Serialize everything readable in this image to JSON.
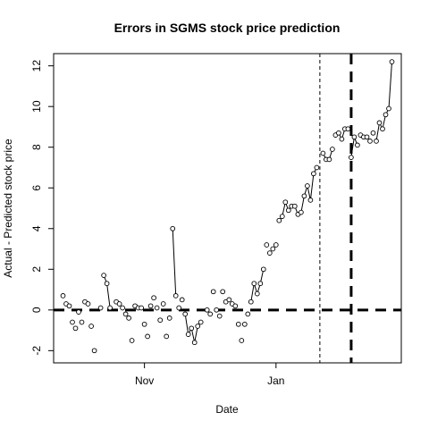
{
  "chart_data": {
    "type": "line",
    "title": "Errors in SGMS stock price prediction",
    "xlabel": "Date",
    "ylabel": "Actual - Predicted stock price",
    "x_ticks": [
      {
        "label": "Nov",
        "index": 26
      },
      {
        "label": "Jan",
        "index": 68
      }
    ],
    "y_ticks": [
      -2,
      0,
      2,
      4,
      6,
      8,
      10,
      12
    ],
    "xlim": [
      -3,
      108
    ],
    "ylim": [
      -2.6,
      12.6
    ],
    "grid": false,
    "legend": "none",
    "reference_lines": [
      {
        "orientation": "horizontal",
        "value": 0,
        "style": "thick-dashed"
      },
      {
        "orientation": "vertical",
        "index": 82,
        "style": "thin-dashed"
      },
      {
        "orientation": "vertical",
        "index": 92,
        "style": "thick-dashed"
      }
    ],
    "series": [
      {
        "marker": "open-circle",
        "line_style": "solid-segments",
        "points": [
          {
            "x": 0,
            "y": 0.7
          },
          {
            "x": 1,
            "y": 0.3
          },
          {
            "x": 2,
            "y": 0.2
          },
          {
            "x": 3,
            "y": -0.6
          },
          {
            "x": 4,
            "y": -0.9
          },
          {
            "x": 5,
            "y": -0.1
          },
          {
            "x": 6,
            "y": -0.6
          },
          {
            "x": 7,
            "y": 0.4
          },
          {
            "x": 8,
            "y": 0.3
          },
          {
            "x": 9,
            "y": -0.8
          },
          {
            "x": 10,
            "y": -2.0
          },
          {
            "x": 12,
            "y": 0.1
          },
          {
            "x": 13,
            "y": 1.7
          },
          {
            "x": 14,
            "y": 1.3
          },
          {
            "x": 15,
            "y": 0.1
          },
          {
            "x": 17,
            "y": 0.4
          },
          {
            "x": 18,
            "y": 0.3
          },
          {
            "x": 19,
            "y": 0.1
          },
          {
            "x": 20,
            "y": -0.2
          },
          {
            "x": 21,
            "y": -0.4
          },
          {
            "x": 22,
            "y": -1.5
          },
          {
            "x": 23,
            "y": 0.2
          },
          {
            "x": 24,
            "y": 0.1
          },
          {
            "x": 25,
            "y": 0.1
          },
          {
            "x": 26,
            "y": -0.7
          },
          {
            "x": 27,
            "y": -1.3
          },
          {
            "x": 28,
            "y": 0.2
          },
          {
            "x": 29,
            "y": 0.6
          },
          {
            "x": 30,
            "y": 0.1
          },
          {
            "x": 31,
            "y": -0.5
          },
          {
            "x": 32,
            "y": 0.3
          },
          {
            "x": 33,
            "y": -1.3
          },
          {
            "x": 34,
            "y": -0.4
          },
          {
            "x": 35,
            "y": 4.0
          },
          {
            "x": 36,
            "y": 0.7
          },
          {
            "x": 37,
            "y": 0.1
          },
          {
            "x": 38,
            "y": 0.5
          },
          {
            "x": 39,
            "y": -0.2
          },
          {
            "x": 40,
            "y": -1.2
          },
          {
            "x": 41,
            "y": -0.9
          },
          {
            "x": 42,
            "y": -1.6
          },
          {
            "x": 43,
            "y": -0.8
          },
          {
            "x": 44,
            "y": -0.6
          },
          {
            "x": 46,
            "y": 0.0
          },
          {
            "x": 47,
            "y": -0.2
          },
          {
            "x": 48,
            "y": 0.9
          },
          {
            "x": 49,
            "y": 0.0
          },
          {
            "x": 50,
            "y": -0.3
          },
          {
            "x": 51,
            "y": 0.9
          },
          {
            "x": 52,
            "y": 0.4
          },
          {
            "x": 53,
            "y": 0.5
          },
          {
            "x": 54,
            "y": 0.3
          },
          {
            "x": 55,
            "y": 0.2
          },
          {
            "x": 56,
            "y": -0.7
          },
          {
            "x": 57,
            "y": -1.5
          },
          {
            "x": 58,
            "y": -0.7
          },
          {
            "x": 59,
            "y": -0.2
          },
          {
            "x": 60,
            "y": 0.4
          },
          {
            "x": 61,
            "y": 1.3
          },
          {
            "x": 62,
            "y": 0.8
          },
          {
            "x": 63,
            "y": 1.3
          },
          {
            "x": 64,
            "y": 2.0
          },
          {
            "x": 65,
            "y": 3.2
          },
          {
            "x": 66,
            "y": 2.8
          },
          {
            "x": 67,
            "y": 3.0
          },
          {
            "x": 68,
            "y": 3.2
          },
          {
            "x": 69,
            "y": 4.4
          },
          {
            "x": 70,
            "y": 4.6
          },
          {
            "x": 71,
            "y": 5.3
          },
          {
            "x": 72,
            "y": 4.9
          },
          {
            "x": 73,
            "y": 5.1
          },
          {
            "x": 74,
            "y": 5.1
          },
          {
            "x": 75,
            "y": 4.7
          },
          {
            "x": 76,
            "y": 4.8
          },
          {
            "x": 77,
            "y": 5.6
          },
          {
            "x": 78,
            "y": 6.1
          },
          {
            "x": 79,
            "y": 5.4
          },
          {
            "x": 80,
            "y": 6.7
          },
          {
            "x": 81,
            "y": 7.0
          },
          {
            "x": 83,
            "y": 7.7
          },
          {
            "x": 84,
            "y": 7.4
          },
          {
            "x": 85,
            "y": 7.4
          },
          {
            "x": 86,
            "y": 7.9
          },
          {
            "x": 87,
            "y": 8.6
          },
          {
            "x": 88,
            "y": 8.7
          },
          {
            "x": 89,
            "y": 8.4
          },
          {
            "x": 90,
            "y": 8.9
          },
          {
            "x": 91,
            "y": 8.9
          },
          {
            "x": 92,
            "y": 7.5
          },
          {
            "x": 93,
            "y": 8.5
          },
          {
            "x": 94,
            "y": 8.1
          },
          {
            "x": 95,
            "y": 8.6
          },
          {
            "x": 96,
            "y": 8.5
          },
          {
            "x": 97,
            "y": 8.5
          },
          {
            "x": 98,
            "y": 8.3
          },
          {
            "x": 99,
            "y": 8.7
          },
          {
            "x": 100,
            "y": 8.3
          },
          {
            "x": 101,
            "y": 9.2
          },
          {
            "x": 102,
            "y": 8.9
          },
          {
            "x": 103,
            "y": 9.6
          },
          {
            "x": 104,
            "y": 9.9
          },
          {
            "x": 105,
            "y": 12.2
          }
        ],
        "segments": [
          [
            13,
            15
          ],
          [
            35,
            36
          ],
          [
            39,
            44
          ],
          [
            60,
            64
          ],
          [
            69,
            81
          ],
          [
            83,
            86
          ],
          [
            88,
            91
          ],
          [
            92,
            94
          ],
          [
            100,
            105
          ]
        ]
      }
    ]
  }
}
